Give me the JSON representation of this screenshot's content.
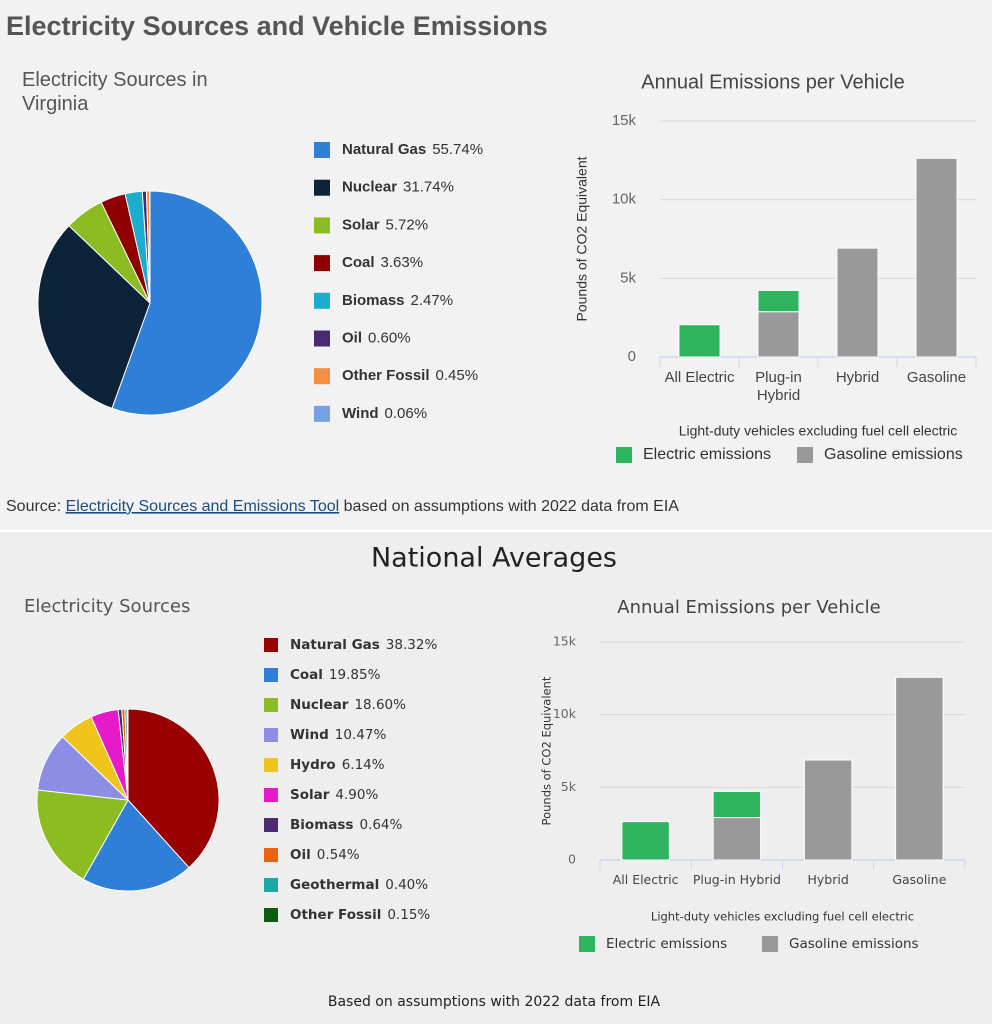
{
  "page_title": "Electricity Sources and Vehicle Emissions",
  "source": {
    "prefix": "Source:",
    "link": "Electricity Sources and Emissions Tool",
    "suffix": "based on assumptions with 2022 data from EIA"
  },
  "section_title": "National Averages",
  "footnote": "Based on assumptions with 2022 data from EIA",
  "chart_data": [
    {
      "type": "pie",
      "title": "Electricity Sources in Virginia",
      "categories": [
        "Natural Gas",
        "Nuclear",
        "Solar",
        "Coal",
        "Biomass",
        "Oil",
        "Other Fossil",
        "Wind"
      ],
      "values": [
        55.74,
        31.74,
        5.72,
        3.63,
        2.47,
        0.6,
        0.45,
        0.06
      ],
      "value_labels": [
        "55.74%",
        "31.74%",
        "5.72%",
        "3.63%",
        "2.47%",
        "0.60%",
        "0.45%",
        "0.06%"
      ],
      "colors": [
        "#2f7ed8",
        "#0d233a",
        "#8bbc21",
        "#910000",
        "#1aadce",
        "#492970",
        "#f28f43",
        "#77a1e5"
      ]
    },
    {
      "type": "bar",
      "title": "Annual Emissions per Vehicle",
      "stacked": true,
      "categories": [
        "All Electric",
        "Plug-in Hybrid",
        "Hybrid",
        "Gasoline"
      ],
      "series": [
        {
          "name": "Electric emissions",
          "color": "#2eb35f",
          "values": [
            2050,
            1350,
            null,
            null
          ]
        },
        {
          "name": "Gasoline emissions",
          "color": "#999999",
          "values": [
            null,
            2880,
            6920,
            12630
          ]
        }
      ],
      "ylim": [
        0,
        15000
      ],
      "yticks": [
        0,
        {
          "value": 5000,
          "label": "5k"
        },
        {
          "value": 10000,
          "label": "10k"
        },
        {
          "value": 15000,
          "label": "15k"
        }
      ],
      "ylabel": "Pounds of CO2 Equivalent",
      "xlabel": "Light-duty vehicles excluding fuel cell electric",
      "grid": true
    },
    {
      "type": "pie",
      "title": "Electricity Sources",
      "categories": [
        "Natural Gas",
        "Coal",
        "Nuclear",
        "Wind",
        "Hydro",
        "Solar",
        "Biomass",
        "Oil",
        "Geothermal",
        "Other Fossil"
      ],
      "values": [
        38.32,
        19.85,
        18.6,
        10.47,
        6.14,
        4.9,
        0.64,
        0.54,
        0.4,
        0.15
      ],
      "value_labels": [
        "38.32%",
        "19.85%",
        "18.60%",
        "10.47%",
        "6.14%",
        "4.90%",
        "0.64%",
        "0.54%",
        "0.40%",
        "0.15%"
      ],
      "colors": [
        "#990000",
        "#2f7ed8",
        "#8bbc21",
        "#8d8de6",
        "#efc51b",
        "#e61ac9",
        "#4a2a70",
        "#e8620f",
        "#1aa8a8",
        "#0d5c0d"
      ]
    },
    {
      "type": "bar",
      "title": "Annual Emissions per Vehicle",
      "stacked": true,
      "categories": [
        "All Electric",
        "Plug-in Hybrid",
        "Hybrid",
        "Gasoline"
      ],
      "series": [
        {
          "name": "Electric emissions",
          "color": "#2eb35f",
          "values": [
            2640,
            1800,
            null,
            null
          ]
        },
        {
          "name": "Gasoline emissions",
          "color": "#999999",
          "values": [
            null,
            2920,
            6880,
            12570
          ]
        }
      ],
      "ylim": [
        0,
        15000
      ],
      "yticks": [
        0,
        {
          "value": 5000,
          "label": "5k"
        },
        {
          "value": 10000,
          "label": "10k"
        },
        {
          "value": 15000,
          "label": "15k"
        }
      ],
      "ylabel": "Pounds of CO2 Equivalent",
      "xlabel": "Light-duty vehicles excluding fuel cell electric",
      "grid": true
    }
  ]
}
